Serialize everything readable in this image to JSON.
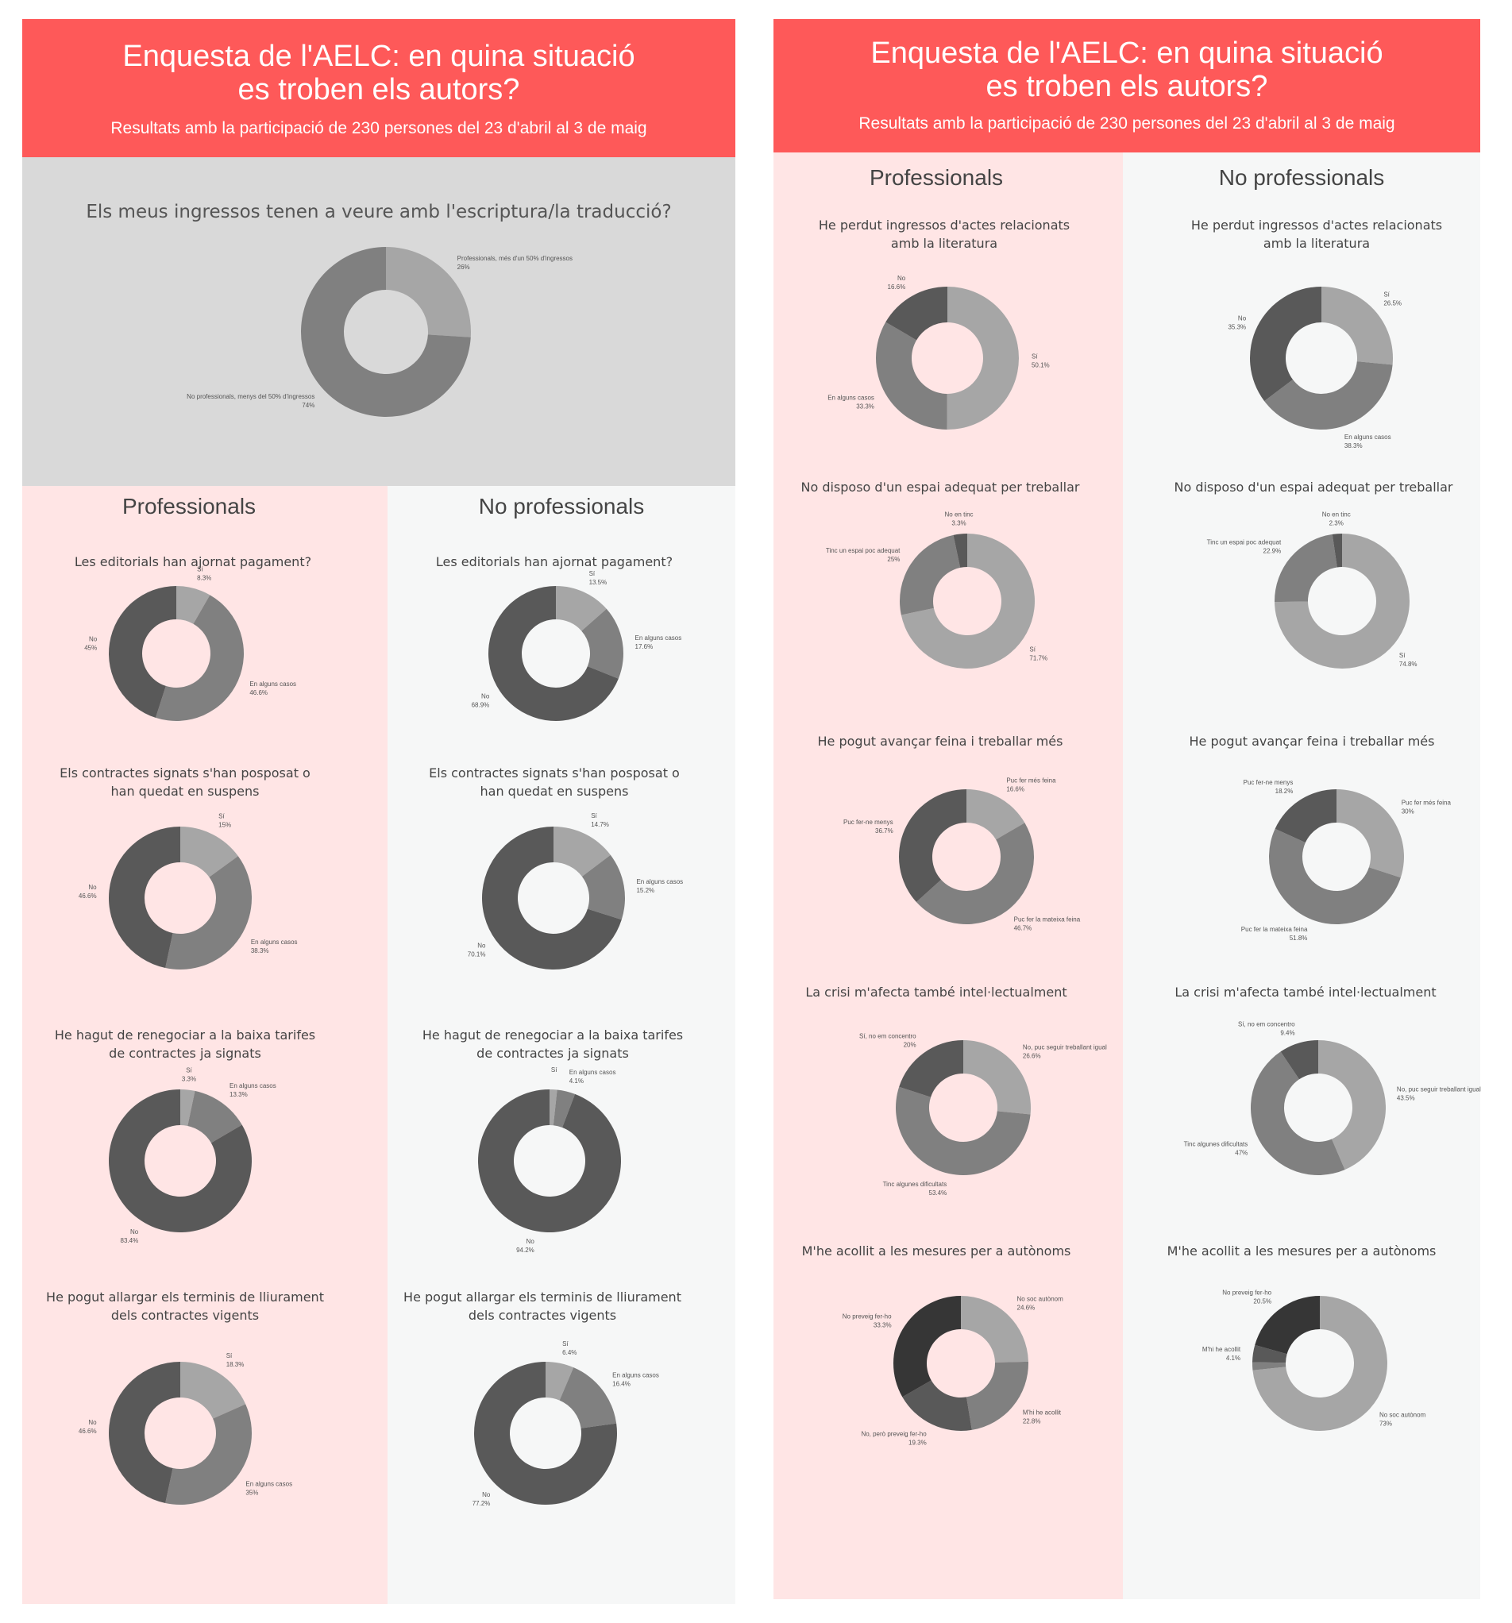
{
  "colors": {
    "header": "#fe5959",
    "pink_bg": "#ffe5e5",
    "light_bg": "#f6f7f7",
    "grey_bg": "#d9d9d9",
    "slice_1": "#a6a6a6",
    "slice_2": "#808080",
    "slice_3": "#595959",
    "slice_4": "#363636"
  },
  "left_panel": {
    "header": {
      "title": "Enquesta de l'AELC: en quina situació\nes troben els autors?",
      "subtitle": "Resultats amb la participació de 230 persones del 23 d'abril al 3 de maig"
    },
    "overview": {
      "title": "Els meus ingressos tenen a veure amb l'escriptura/la traducció?"
    },
    "col_professionals": "Professionals",
    "col_no_professionals": "No professionals",
    "questions": [
      "Les editorials han ajornat pagament?",
      "Els contractes signats s'han posposat o han quedat en suspens",
      "He hagut de renegociar a la baixa tarifes de contractes ja signats",
      "He pogut allargar els terminis de lliurament dels contractes vigents"
    ]
  },
  "right_panel": {
    "header": {
      "title": "Enquesta de l'AELC: en quina situació\nes troben els autors?",
      "subtitle": "Resultats amb la participació de 230 persones del 23 d'abril al 3 de maig"
    },
    "col_professionals": "Professionals",
    "col_no_professionals": "No professionals",
    "questions": [
      "He perdut ingressos d'actes relacionats amb la literatura",
      "No disposo d'un espai adequat per treballar",
      "He pogut avançar feina i treballar més",
      "La crisi m'afecta  també intel·lectualment",
      "M'he acollit a les mesures per a autònoms"
    ]
  },
  "chart_data": [
    {
      "id": "overview",
      "type": "pie",
      "labels": [
        "Professionals, més d'un 50% d'ingressos",
        "No professionals, menys del 50% d'ingressos"
      ],
      "values": [
        26,
        74
      ],
      "value_labels": [
        "26%",
        "74%"
      ]
    },
    {
      "id": "L1P",
      "type": "pie",
      "labels": [
        "Sí",
        "En alguns casos",
        "No"
      ],
      "values": [
        8.3,
        46.6,
        45
      ],
      "value_labels": [
        "8.3%",
        "46.6%",
        "45%"
      ]
    },
    {
      "id": "L1N",
      "type": "pie",
      "labels": [
        "Sí",
        "En alguns casos",
        "No"
      ],
      "values": [
        13.5,
        17.6,
        68.9
      ],
      "value_labels": [
        "13.5%",
        "17.6%",
        "68.9%"
      ]
    },
    {
      "id": "L2P",
      "type": "pie",
      "labels": [
        "Sí",
        "En alguns casos",
        "No"
      ],
      "values": [
        15,
        38.3,
        46.6
      ],
      "value_labels": [
        "15%",
        "38.3%",
        "46.6%"
      ]
    },
    {
      "id": "L2N",
      "type": "pie",
      "labels": [
        "Sí",
        "En alguns casos",
        "No"
      ],
      "values": [
        14.7,
        15.2,
        70.1
      ],
      "value_labels": [
        "14.7%",
        "15.2%",
        "70.1%"
      ]
    },
    {
      "id": "L3P",
      "type": "pie",
      "labels": [
        "Sí",
        "En alguns casos",
        "No"
      ],
      "values": [
        3.3,
        13.3,
        83.4
      ],
      "value_labels": [
        "3.3%",
        "13.3%",
        "83.4%"
      ]
    },
    {
      "id": "L3N",
      "type": "pie",
      "labels": [
        "Sí",
        "En alguns casos",
        "No"
      ],
      "values": [
        1.7,
        4.1,
        94.2
      ],
      "value_labels": [
        "",
        "4.1%",
        "94.2%"
      ]
    },
    {
      "id": "L4P",
      "type": "pie",
      "labels": [
        "Sí",
        "En alguns casos",
        "No"
      ],
      "values": [
        18.3,
        35,
        46.6
      ],
      "value_labels": [
        "18.3%",
        "35%",
        "46.6%"
      ]
    },
    {
      "id": "L4N",
      "type": "pie",
      "labels": [
        "Sí",
        "En alguns casos",
        "No"
      ],
      "values": [
        6.4,
        16.4,
        77.2
      ],
      "value_labels": [
        "6.4%",
        "16.4%",
        "77.2%"
      ]
    },
    {
      "id": "R1P",
      "type": "pie",
      "labels": [
        "Sí",
        "En alguns casos",
        "No"
      ],
      "values": [
        50.1,
        33.3,
        16.6
      ],
      "value_labels": [
        "50.1%",
        "33.3%",
        "16.6%"
      ]
    },
    {
      "id": "R1N",
      "type": "pie",
      "labels": [
        "Sí",
        "En alguns casos",
        "No"
      ],
      "values": [
        26.5,
        38.3,
        35.3
      ],
      "value_labels": [
        "26.5%",
        "38.3%",
        "35.3%"
      ]
    },
    {
      "id": "R2P",
      "type": "pie",
      "labels": [
        "Sí",
        "Tinc un espai poc adequat",
        "No en tinc"
      ],
      "values": [
        71.7,
        25,
        3.3
      ],
      "value_labels": [
        "71.7%",
        "25%",
        "3.3%"
      ]
    },
    {
      "id": "R2N",
      "type": "pie",
      "labels": [
        "Sí",
        "Tinc un espai poc adequat",
        "No en tinc"
      ],
      "values": [
        74.8,
        22.9,
        2.3
      ],
      "value_labels": [
        "74.8%",
        "22.9%",
        "2.3%"
      ]
    },
    {
      "id": "R3P",
      "type": "pie",
      "labels": [
        "Puc fer més feina",
        "Puc fer la mateixa feina",
        "Puc fer-ne menys"
      ],
      "values": [
        16.6,
        46.7,
        36.7
      ],
      "value_labels": [
        "16.6%",
        "46.7%",
        "36.7%"
      ]
    },
    {
      "id": "R3N",
      "type": "pie",
      "labels": [
        "Puc fer més feina",
        "Puc fer la mateixa feina",
        "Puc fer-ne menys"
      ],
      "values": [
        30,
        51.8,
        18.2
      ],
      "value_labels": [
        "30%",
        "51.8%",
        "18.2%"
      ]
    },
    {
      "id": "R4P",
      "type": "pie",
      "labels": [
        "No, puc seguir treballant igual",
        "Tinc algunes dificultats",
        "Sí, no em concentro"
      ],
      "values": [
        26.6,
        53.4,
        20
      ],
      "value_labels": [
        "26.6%",
        "53.4%",
        "20%"
      ]
    },
    {
      "id": "R4N",
      "type": "pie",
      "labels": [
        "No, puc seguir treballant igual",
        "Tinc algunes dificultats",
        "Sí, no em concentro"
      ],
      "values": [
        43.5,
        47,
        9.4
      ],
      "value_labels": [
        "43.5%",
        "47%",
        "9.4%"
      ]
    },
    {
      "id": "R5P",
      "type": "pie",
      "labels": [
        "No soc autònom",
        "M'hi he acollit",
        "No, però preveig fer-ho",
        "No preveig fer-ho"
      ],
      "values": [
        24.6,
        22.8,
        19.3,
        33.3
      ],
      "value_labels": [
        "24.6%",
        "22.8%",
        "19.3%",
        "33.3%"
      ]
    },
    {
      "id": "R5N",
      "type": "pie",
      "labels": [
        "No soc autònom",
        "",
        "M'hi he acollit",
        "No preveig fer-ho"
      ],
      "values": [
        73,
        1.9,
        4.1,
        20.5
      ],
      "value_labels": [
        "73%",
        "",
        "4.1%",
        "20.5%"
      ]
    }
  ]
}
